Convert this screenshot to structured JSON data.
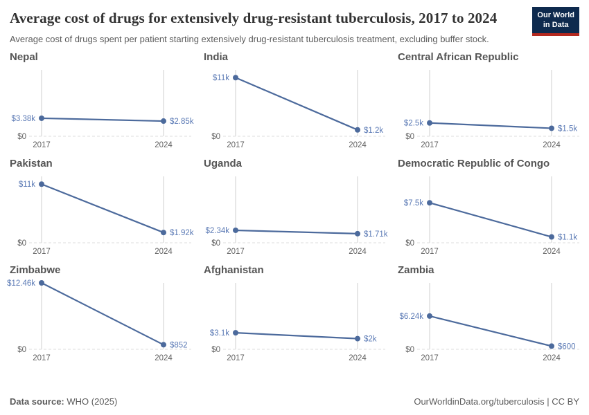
{
  "header": {
    "title": "Average cost of drugs for extensively drug-resistant tuberculosis, 2017 to 2024",
    "subtitle": "Average cost of drugs spent per patient starting extensively drug-resistant tuberculosis treatment, excluding buffer stock.",
    "logo": {
      "line1": "Our World",
      "line2": "in Data"
    }
  },
  "footer": {
    "source_label": "Data source:",
    "source_value": " WHO (2025)",
    "right_text": "OurWorldinData.org/tuberculosis | CC BY"
  },
  "colors": {
    "series": "#4c6a9c",
    "value_label": "#5b7ab5",
    "grid_line": "#cfcfcf",
    "baseline": "#dedede",
    "axis_text": "#5f5f5f",
    "facet_title": "#555555",
    "title_text": "#333333",
    "subtitle_text": "#5b5b5b",
    "footer_text": "#5b5b5b",
    "logo_bg": "#0e2a4e",
    "logo_red": "#b5291f"
  },
  "chart_data": {
    "type": "line",
    "title": "Average cost of drugs for extensively drug-resistant tuberculosis, 2017 to 2024",
    "subtitle": "Average cost of drugs spent per patient starting extensively drug-resistant tuberculosis treatment, excluding buffer stock.",
    "layout": "3x3 small multiples, one line per country, shared y scale",
    "x": [
      2017,
      2024
    ],
    "x_tick_labels": [
      "2017",
      "2024"
    ],
    "y_zero_label": "$0",
    "unit": "US$ per patient",
    "ylim": [
      0,
      12460
    ],
    "grid": "vertical gridlines at 2017 and 2024, dashed zero baseline",
    "legend": false,
    "facets": [
      {
        "country": "Nepal",
        "values": [
          3380,
          2850
        ],
        "labels": [
          "$3.38k",
          "$2.85k"
        ]
      },
      {
        "country": "India",
        "values": [
          11000,
          1200
        ],
        "labels": [
          "$11k",
          "$1.2k"
        ]
      },
      {
        "country": "Central African Republic",
        "values": [
          2500,
          1500
        ],
        "labels": [
          "$2.5k",
          "$1.5k"
        ]
      },
      {
        "country": "Pakistan",
        "values": [
          11000,
          1920
        ],
        "labels": [
          "$11k",
          "$1.92k"
        ]
      },
      {
        "country": "Uganda",
        "values": [
          2340,
          1710
        ],
        "labels": [
          "$2.34k",
          "$1.71k"
        ]
      },
      {
        "country": "Democratic Republic of Congo",
        "values": [
          7500,
          1100
        ],
        "labels": [
          "$7.5k",
          "$1.1k"
        ]
      },
      {
        "country": "Zimbabwe",
        "values": [
          12460,
          852
        ],
        "labels": [
          "$12.46k",
          "$852"
        ]
      },
      {
        "country": "Afghanistan",
        "values": [
          3100,
          2000
        ],
        "labels": [
          "$3.1k",
          "$2k"
        ]
      },
      {
        "country": "Zambia",
        "values": [
          6240,
          600
        ],
        "labels": [
          "$6.24k",
          "$600"
        ]
      }
    ]
  }
}
